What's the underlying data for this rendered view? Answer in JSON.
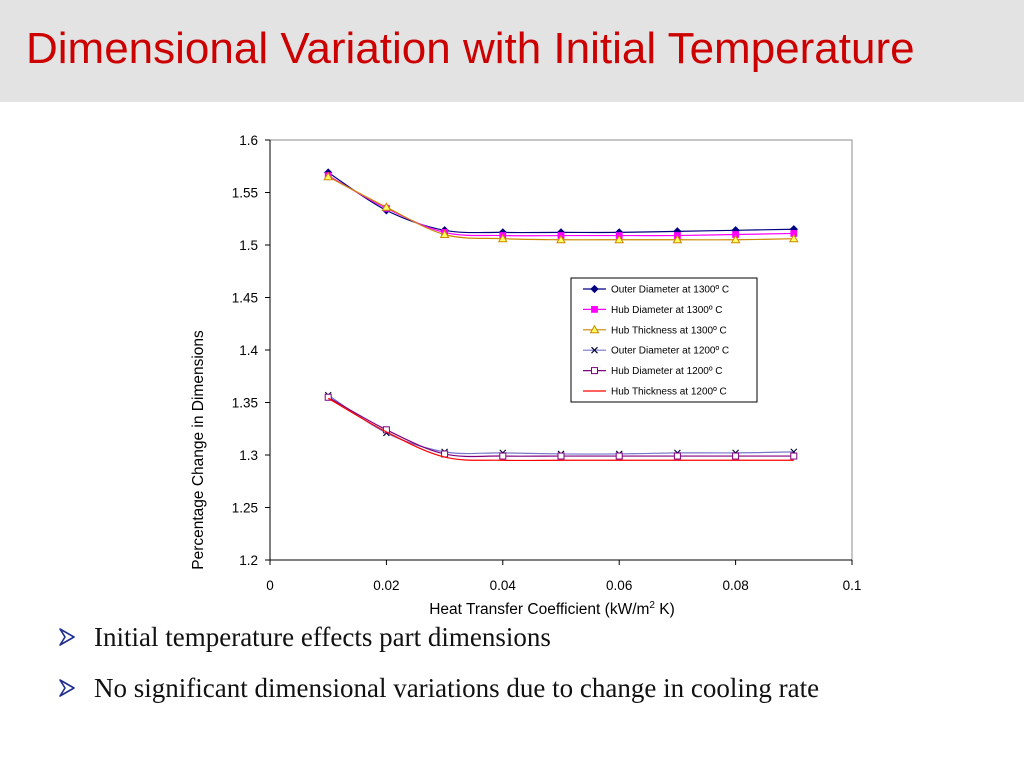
{
  "slide": {
    "title": "Dimensional Variation with Initial Temperature",
    "bullets": [
      "Initial temperature effects part dimensions",
      "No significant dimensional variations due to change in cooling rate"
    ]
  },
  "colors": {
    "title": "#cc0000",
    "title_bar": "#e3e3e3",
    "bullet_arrow": "#1f2d8f"
  },
  "chart_data": {
    "type": "line",
    "title": "",
    "xlabel_main": "Heat Transfer Coefficient (kW/m",
    "xlabel_sup": "2",
    "xlabel_tail": " K)",
    "ylabel": "Percentage Change in Dimensions",
    "xlim": [
      0,
      0.1
    ],
    "ylim": [
      1.2,
      1.6
    ],
    "xticks": [
      "0",
      "0.02",
      "0.04",
      "0.06",
      "0.08",
      "0.1"
    ],
    "yticks": [
      "1.2",
      "1.25",
      "1.3",
      "1.35",
      "1.4",
      "1.45",
      "1.5",
      "1.55",
      "1.6"
    ],
    "grid": false,
    "legend_position": "center-right",
    "x": [
      0.01,
      0.02,
      0.03,
      0.04,
      0.05,
      0.06,
      0.07,
      0.08,
      0.09
    ],
    "series": [
      {
        "name": "Outer Diameter at 1300º C",
        "color": "#000080",
        "marker": "diamond",
        "values": [
          1.569,
          1.533,
          1.514,
          1.512,
          1.512,
          1.512,
          1.513,
          1.514,
          1.515
        ]
      },
      {
        "name": "Hub Diameter at 1300º C",
        "color": "#ff00ff",
        "marker": "square",
        "values": [
          1.566,
          1.535,
          1.512,
          1.509,
          1.509,
          1.509,
          1.509,
          1.51,
          1.511
        ]
      },
      {
        "name": "Hub Thickness at 1300º C",
        "color": "#cc8800",
        "marker": "triangle",
        "values": [
          1.565,
          1.536,
          1.51,
          1.506,
          1.505,
          1.505,
          1.505,
          1.505,
          1.506
        ]
      },
      {
        "name": "Outer Diameter at 1200º C",
        "color": "#7777cc",
        "marker": "x",
        "values": [
          1.357,
          1.321,
          1.303,
          1.302,
          1.301,
          1.301,
          1.302,
          1.302,
          1.303
        ]
      },
      {
        "name": "Hub Diameter at 1200º C",
        "color": "#800080",
        "marker": "open-square",
        "values": [
          1.355,
          1.324,
          1.301,
          1.299,
          1.299,
          1.299,
          1.299,
          1.299,
          1.299
        ]
      },
      {
        "name": "Hub Thickness at 1200º C",
        "color": "#ff0000",
        "marker": "none",
        "values": [
          1.354,
          1.322,
          1.298,
          1.295,
          1.295,
          1.295,
          1.295,
          1.295,
          1.295
        ]
      }
    ]
  }
}
